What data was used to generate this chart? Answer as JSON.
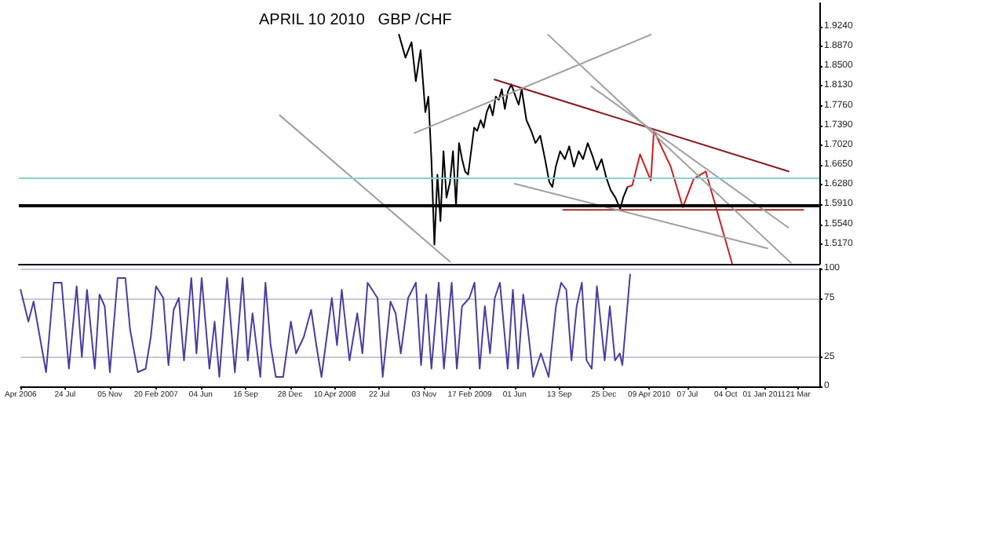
{
  "chart_data": [
    {
      "type": "line",
      "title": "APRIL 10 2010   GBP /CHF",
      "marker": "none",
      "tick_labels": "y",
      "grid": false,
      "xlim": [
        "2006-04-12",
        "2011-05-09"
      ],
      "ylim": [
        1.48,
        1.968
      ],
      "yticks": [
        {
          "value": 1.924,
          "label": "1.9240"
        },
        {
          "value": 1.887,
          "label": "1.8870"
        },
        {
          "value": 1.85,
          "label": "1.8500"
        },
        {
          "value": 1.813,
          "label": "1.8130"
        },
        {
          "value": 1.776,
          "label": "1.7760"
        },
        {
          "value": 1.739,
          "label": "1.7390"
        },
        {
          "value": 1.702,
          "label": "1.7020"
        },
        {
          "value": 1.665,
          "label": "1.6650"
        },
        {
          "value": 1.628,
          "label": "1.6280"
        },
        {
          "value": 1.591,
          "label": "1.5910"
        },
        {
          "value": 1.554,
          "label": "1.5540"
        },
        {
          "value": 1.517,
          "label": "1.5170"
        }
      ],
      "ref_lines": [
        {
          "axis": "y",
          "value": 1.586,
          "color": "#000000"
        },
        {
          "axis": "y",
          "value": 1.641,
          "color": "#8ccfcf"
        }
      ],
      "series": [
        {
          "color": "#000000",
          "x": [
            "2008-09-08",
            "2008-09-23",
            "2008-10-07",
            "2008-10-17",
            "2008-10-28",
            "2008-11-08",
            "2008-11-15",
            "2008-11-22",
            "2008-11-29",
            "2008-12-06",
            "2008-12-13",
            "2008-12-20",
            "2008-12-27",
            "2009-01-04",
            "2009-01-11",
            "2009-01-18",
            "2009-01-25",
            "2009-02-01",
            "2009-02-08",
            "2009-02-15",
            "2009-02-22",
            "2009-03-01",
            "2009-03-08",
            "2009-03-16",
            "2009-03-23",
            "2009-03-30",
            "2009-04-06",
            "2009-04-13",
            "2009-04-20",
            "2009-04-27",
            "2009-05-04",
            "2009-05-11",
            "2009-05-18",
            "2009-05-26",
            "2009-06-05",
            "2009-06-12",
            "2009-06-19",
            "2009-06-30",
            "2009-07-11",
            "2009-07-21",
            "2009-08-01",
            "2009-08-12",
            "2009-08-22",
            "2009-08-29",
            "2009-09-06",
            "2009-09-16",
            "2009-09-27",
            "2009-10-07",
            "2009-10-18",
            "2009-10-29",
            "2009-11-08",
            "2009-11-19",
            "2009-11-30",
            "2009-12-10",
            "2009-12-21",
            "2010-01-01",
            "2010-01-11",
            "2010-01-22",
            "2010-02-02",
            "2010-02-09",
            "2010-02-19"
          ],
          "values": [
            1.909,
            1.866,
            1.895,
            1.822,
            1.88,
            1.764,
            1.793,
            1.676,
            1.516,
            1.647,
            1.56,
            1.691,
            1.604,
            1.633,
            1.691,
            1.589,
            1.706,
            1.676,
            1.653,
            1.647,
            1.691,
            1.735,
            1.729,
            1.749,
            1.735,
            1.764,
            1.778,
            1.758,
            1.793,
            1.787,
            1.807,
            1.77,
            1.802,
            1.816,
            1.793,
            1.778,
            1.807,
            1.749,
            1.729,
            1.706,
            1.72,
            1.676,
            1.633,
            1.624,
            1.662,
            1.691,
            1.676,
            1.7,
            1.662,
            1.691,
            1.676,
            1.706,
            1.682,
            1.656,
            1.676,
            1.641,
            1.618,
            1.604,
            1.583,
            1.604,
            1.624
          ]
        },
        {
          "color": "#cc1f1f",
          "x": [
            "2010-02-19",
            "2010-03-02",
            "2010-03-20",
            "2010-04-14",
            "2010-04-21",
            "2010-05-30",
            "2010-06-27",
            "2010-07-22",
            "2010-08-19",
            "2010-10-19"
          ],
          "values": [
            1.624,
            1.627,
            1.685,
            1.636,
            1.729,
            1.662,
            1.586,
            1.639,
            1.653,
            1.481
          ]
        },
        {
          "color": "#8b1a1a",
          "x": [
            "2009-04-17",
            "2011-02-27"
          ],
          "values": [
            1.825,
            1.653
          ]
        },
        {
          "color": "#a52a2a",
          "x": [
            "2009-09-23",
            "2011-04-02"
          ],
          "values": [
            1.581,
            1.581
          ]
        },
        {
          "color": "#a0a0a0",
          "x": [
            "2008-10-14",
            "2010-04-14"
          ],
          "values": [
            1.725,
            1.909
          ]
        },
        {
          "color": "#a0a0a0",
          "x": [
            "2009-06-03",
            "2011-01-09"
          ],
          "values": [
            1.63,
            1.509
          ]
        },
        {
          "color": "#a0a0a0",
          "x": [
            "2009-11-27",
            "2011-02-26"
          ],
          "values": [
            1.812,
            1.548
          ]
        },
        {
          "color": "#a0a0a0",
          "x": [
            "2009-08-19",
            "2011-03-04"
          ],
          "values": [
            1.909,
            1.482
          ]
        },
        {
          "color": "#a0a0a0",
          "x": [
            "2007-12-07",
            "2009-01-04"
          ],
          "values": [
            1.758,
            1.484
          ]
        }
      ]
    },
    {
      "type": "line",
      "marker": "none",
      "grid": "y",
      "xlim": [
        "2006-04-12",
        "2011-05-09"
      ],
      "xticks": [
        {
          "value": "2006-04-12",
          "label": "Apr 2006"
        },
        {
          "value": "2006-07-24",
          "label": "24 Jul"
        },
        {
          "value": "2006-11-05",
          "label": "05 Nov"
        },
        {
          "value": "2007-02-20",
          "label": "20 Feb 2007"
        },
        {
          "value": "2007-06-04",
          "label": "04 Jun"
        },
        {
          "value": "2007-09-16",
          "label": "16 Sep"
        },
        {
          "value": "2007-12-28",
          "label": "28 Dec"
        },
        {
          "value": "2008-04-10",
          "label": "10 Apr 2008"
        },
        {
          "value": "2008-07-22",
          "label": "22 Jul"
        },
        {
          "value": "2008-11-03",
          "label": "03 Nov"
        },
        {
          "value": "2009-02-17",
          "label": "17 Feb 2009"
        },
        {
          "value": "2009-06-01",
          "label": "01 Jun"
        },
        {
          "value": "2009-09-13",
          "label": "13 Sep"
        },
        {
          "value": "2009-12-25",
          "label": "25 Dec"
        },
        {
          "value": "2010-04-09",
          "label": "09 Apr 2010"
        },
        {
          "value": "2010-07-07",
          "label": "07 Jul"
        },
        {
          "value": "2010-10-04",
          "label": "04 Oct"
        },
        {
          "value": "2011-01-01",
          "label": "01 Jan 2011"
        },
        {
          "value": "2011-03-21",
          "label": "21 Mar"
        }
      ],
      "ylim": [
        0,
        100
      ],
      "yticks": [
        0,
        25,
        75,
        100
      ],
      "series": [
        {
          "color": "#4b3d9e",
          "x": [
            "2006-04-12",
            "2006-04-30",
            "2006-05-12",
            "2006-06-10",
            "2006-06-28",
            "2006-07-16",
            "2006-08-02",
            "2006-08-20",
            "2006-09-01",
            "2006-09-13",
            "2006-10-01",
            "2006-10-12",
            "2006-10-24",
            "2006-11-05",
            "2006-11-23",
            "2006-12-11",
            "2006-12-22",
            "2007-01-09",
            "2007-01-27",
            "2007-02-08",
            "2007-02-20",
            "2007-03-09",
            "2007-03-21",
            "2007-04-02",
            "2007-04-14",
            "2007-04-26",
            "2007-05-13",
            "2007-05-25",
            "2007-06-06",
            "2007-06-24",
            "2007-07-06",
            "2007-07-17",
            "2007-08-04",
            "2007-08-22",
            "2007-09-09",
            "2007-09-21",
            "2007-10-02",
            "2007-10-20",
            "2007-11-01",
            "2007-11-13",
            "2007-11-25",
            "2007-12-12",
            "2007-12-30",
            "2008-01-11",
            "2008-01-29",
            "2008-02-15",
            "2008-02-27",
            "2008-03-10",
            "2008-04-03",
            "2008-04-15",
            "2008-04-26",
            "2008-05-14",
            "2008-06-01",
            "2008-06-13",
            "2008-06-25",
            "2008-07-18",
            "2008-07-30",
            "2008-08-17",
            "2008-08-29",
            "2008-09-10",
            "2008-09-27",
            "2008-10-15",
            "2008-10-27",
            "2008-11-08",
            "2008-11-20",
            "2008-12-07",
            "2008-12-19",
            "2009-01-06",
            "2009-01-18",
            "2009-01-30",
            "2009-02-16",
            "2009-02-28",
            "2009-03-12",
            "2009-03-24",
            "2009-04-05",
            "2009-04-16",
            "2009-04-28",
            "2009-05-16",
            "2009-05-28",
            "2009-06-09",
            "2009-06-21",
            "2009-07-02",
            "2009-07-14",
            "2009-08-01",
            "2009-08-19",
            "2009-09-05",
            "2009-09-17",
            "2009-09-29",
            "2009-10-11",
            "2009-10-23",
            "2009-11-04",
            "2009-11-15",
            "2009-11-27",
            "2009-12-09",
            "2009-12-27",
            "2010-01-08",
            "2010-01-20",
            "2010-01-31",
            "2010-02-06",
            "2010-02-24"
          ],
          "values": [
            82,
            55,
            72,
            12,
            88,
            88,
            15,
            85,
            25,
            82,
            15,
            78,
            68,
            12,
            92,
            92,
            48,
            12,
            15,
            42,
            85,
            75,
            18,
            65,
            75,
            22,
            92,
            28,
            92,
            15,
            55,
            8,
            92,
            12,
            92,
            22,
            62,
            8,
            88,
            35,
            8,
            8,
            55,
            28,
            42,
            65,
            35,
            8,
            75,
            35,
            82,
            22,
            62,
            28,
            88,
            75,
            8,
            72,
            62,
            28,
            75,
            88,
            18,
            78,
            15,
            88,
            15,
            88,
            15,
            68,
            75,
            88,
            15,
            68,
            28,
            75,
            88,
            15,
            82,
            15,
            78,
            48,
            8,
            28,
            8,
            68,
            88,
            82,
            22,
            68,
            88,
            22,
            15,
            85,
            22,
            68,
            22,
            28,
            18,
            95
          ]
        }
      ]
    }
  ]
}
